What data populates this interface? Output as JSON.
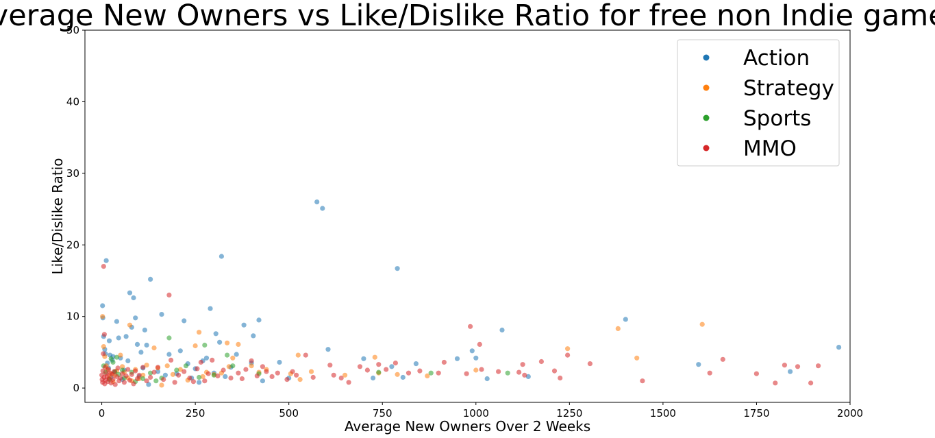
{
  "chart_data": {
    "type": "scatter",
    "title": "Average New Owners vs Like/Dislike Ratio for free non Indie games",
    "xlabel": "Average New Owners Over 2 Weeks",
    "ylabel": "Like/Dislike Ratio",
    "xlim": [
      -45,
      2000
    ],
    "ylim": [
      -2,
      50
    ],
    "xticks": [
      0,
      250,
      500,
      750,
      1000,
      1250,
      1500,
      1750,
      2000
    ],
    "yticks": [
      0,
      10,
      20,
      30,
      40,
      50
    ],
    "grid": false,
    "legend_position": "top-right",
    "series": [
      {
        "name": "Action",
        "color": "#1f77b4",
        "points": [
          [
            2,
            11.5
          ],
          [
            3,
            9.8
          ],
          [
            5,
            7.2
          ],
          [
            8,
            5.4
          ],
          [
            10,
            4.8
          ],
          [
            12,
            17.8
          ],
          [
            15,
            3.5
          ],
          [
            18,
            2.8
          ],
          [
            20,
            6.6
          ],
          [
            22,
            4.6
          ],
          [
            25,
            1.5
          ],
          [
            28,
            3.9
          ],
          [
            30,
            4.4
          ],
          [
            35,
            2.2
          ],
          [
            40,
            9.3
          ],
          [
            45,
            7.0
          ],
          [
            50,
            4.2
          ],
          [
            55,
            1.2
          ],
          [
            60,
            2.5
          ],
          [
            65,
            7.2
          ],
          [
            70,
            3.8
          ],
          [
            75,
            13.3
          ],
          [
            80,
            8.5
          ],
          [
            85,
            12.6
          ],
          [
            90,
            9.8
          ],
          [
            95,
            6.1
          ],
          [
            100,
            1.6
          ],
          [
            105,
            5.0
          ],
          [
            110,
            2.8
          ],
          [
            115,
            8.1
          ],
          [
            120,
            6.0
          ],
          [
            125,
            0.5
          ],
          [
            130,
            15.2
          ],
          [
            150,
            2.3
          ],
          [
            160,
            10.3
          ],
          [
            170,
            1.8
          ],
          [
            180,
            4.7
          ],
          [
            200,
            2.0
          ],
          [
            210,
            5.2
          ],
          [
            220,
            9.4
          ],
          [
            230,
            3.4
          ],
          [
            240,
            1.4
          ],
          [
            250,
            2.7
          ],
          [
            260,
            0.8
          ],
          [
            270,
            3.8
          ],
          [
            280,
            4.2
          ],
          [
            290,
            11.1
          ],
          [
            300,
            2.1
          ],
          [
            305,
            7.6
          ],
          [
            315,
            6.4
          ],
          [
            320,
            18.4
          ],
          [
            330,
            1.6
          ],
          [
            345,
            2.9
          ],
          [
            360,
            4.7
          ],
          [
            380,
            8.8
          ],
          [
            400,
            3.5
          ],
          [
            405,
            7.3
          ],
          [
            420,
            9.5
          ],
          [
            430,
            1.0
          ],
          [
            475,
            3.6
          ],
          [
            500,
            1.4
          ],
          [
            575,
            26.0
          ],
          [
            590,
            25.1
          ],
          [
            605,
            5.4
          ],
          [
            700,
            4.1
          ],
          [
            725,
            1.4
          ],
          [
            775,
            3.0
          ],
          [
            790,
            16.7
          ],
          [
            805,
            1.5
          ],
          [
            840,
            3.4
          ],
          [
            950,
            4.1
          ],
          [
            990,
            5.2
          ],
          [
            1000,
            4.2
          ],
          [
            1030,
            1.3
          ],
          [
            1070,
            8.1
          ],
          [
            1140,
            1.6
          ],
          [
            1400,
            9.6
          ],
          [
            1595,
            3.3
          ],
          [
            1840,
            2.3
          ],
          [
            1970,
            5.7
          ]
        ]
      },
      {
        "name": "Strategy",
        "color": "#ff7f0e",
        "points": [
          [
            2,
            10.0
          ],
          [
            5,
            5.8
          ],
          [
            8,
            4.4
          ],
          [
            12,
            3.1
          ],
          [
            15,
            2.6
          ],
          [
            20,
            1.5
          ],
          [
            25,
            2.0
          ],
          [
            30,
            0.9
          ],
          [
            35,
            1.8
          ],
          [
            40,
            2.4
          ],
          [
            50,
            4.6
          ],
          [
            55,
            3.0
          ],
          [
            60,
            2.2
          ],
          [
            70,
            1.4
          ],
          [
            75,
            8.8
          ],
          [
            80,
            1.0
          ],
          [
            90,
            2.6
          ],
          [
            100,
            1.3
          ],
          [
            110,
            1.8
          ],
          [
            120,
            3.2
          ],
          [
            140,
            5.6
          ],
          [
            150,
            2.8
          ],
          [
            160,
            0.4
          ],
          [
            175,
            3.1
          ],
          [
            190,
            1.9
          ],
          [
            210,
            2.6
          ],
          [
            230,
            1.1
          ],
          [
            250,
            5.9
          ],
          [
            260,
            7.8
          ],
          [
            270,
            1.6
          ],
          [
            280,
            2.2
          ],
          [
            300,
            1.9
          ],
          [
            320,
            2.1
          ],
          [
            335,
            6.3
          ],
          [
            340,
            3.0
          ],
          [
            350,
            4.2
          ],
          [
            365,
            6.1
          ],
          [
            400,
            3.1
          ],
          [
            420,
            2.2
          ],
          [
            440,
            2.6
          ],
          [
            505,
            2.0
          ],
          [
            525,
            4.6
          ],
          [
            530,
            1.2
          ],
          [
            560,
            2.3
          ],
          [
            650,
            1.8
          ],
          [
            730,
            4.3
          ],
          [
            740,
            2.1
          ],
          [
            790,
            1.9
          ],
          [
            870,
            1.7
          ],
          [
            1000,
            2.5
          ],
          [
            1245,
            5.5
          ],
          [
            1380,
            8.3
          ],
          [
            1430,
            4.2
          ],
          [
            1605,
            8.9
          ]
        ]
      },
      {
        "name": "Sports",
        "color": "#2ca02c",
        "points": [
          [
            5,
            3.1
          ],
          [
            10,
            2.2
          ],
          [
            20,
            1.2
          ],
          [
            25,
            4.1
          ],
          [
            30,
            3.6
          ],
          [
            35,
            2.3
          ],
          [
            40,
            4.3
          ],
          [
            45,
            1.9
          ],
          [
            55,
            2.5
          ],
          [
            60,
            1.4
          ],
          [
            80,
            2.2
          ],
          [
            90,
            0.9
          ],
          [
            110,
            1.3
          ],
          [
            130,
            2.1
          ],
          [
            145,
            1.0
          ],
          [
            160,
            1.4
          ],
          [
            180,
            7.0
          ],
          [
            200,
            2.5
          ],
          [
            225,
            3.1
          ],
          [
            260,
            1.5
          ],
          [
            275,
            6.0
          ],
          [
            300,
            1.8
          ],
          [
            335,
            4.6
          ],
          [
            350,
            3.1
          ],
          [
            420,
            2.0
          ],
          [
            740,
            2.2
          ],
          [
            880,
            2.1
          ],
          [
            1085,
            2.1
          ]
        ]
      },
      {
        "name": "MMO",
        "color": "#d62728",
        "points": [
          [
            0,
            1.8
          ],
          [
            1,
            1.2
          ],
          [
            2,
            0.8
          ],
          [
            3,
            2.4
          ],
          [
            4,
            4.8
          ],
          [
            5,
            17.0
          ],
          [
            6,
            1.5
          ],
          [
            7,
            7.5
          ],
          [
            8,
            0.6
          ],
          [
            9,
            2.9
          ],
          [
            10,
            1.1
          ],
          [
            12,
            2.0
          ],
          [
            14,
            1.6
          ],
          [
            16,
            0.9
          ],
          [
            18,
            2.6
          ],
          [
            20,
            1.3
          ],
          [
            22,
            2.1
          ],
          [
            25,
            0.7
          ],
          [
            28,
            1.9
          ],
          [
            30,
            1.2
          ],
          [
            33,
            2.3
          ],
          [
            36,
            0.5
          ],
          [
            40,
            1.6
          ],
          [
            43,
            2.8
          ],
          [
            46,
            1.0
          ],
          [
            50,
            1.4
          ],
          [
            55,
            2.0
          ],
          [
            60,
            0.8
          ],
          [
            65,
            1.7
          ],
          [
            70,
            2.6
          ],
          [
            75,
            1.1
          ],
          [
            80,
            1.9
          ],
          [
            85,
            0.6
          ],
          [
            90,
            2.4
          ],
          [
            95,
            1.3
          ],
          [
            100,
            1.8
          ],
          [
            110,
            2.9
          ],
          [
            120,
            1.0
          ],
          [
            130,
            1.5
          ],
          [
            140,
            2.2
          ],
          [
            150,
            2.9
          ],
          [
            165,
            1.2
          ],
          [
            180,
            13.0
          ],
          [
            185,
            3.9
          ],
          [
            195,
            0.8
          ],
          [
            205,
            1.8
          ],
          [
            220,
            2.3
          ],
          [
            235,
            1.4
          ],
          [
            245,
            0.9
          ],
          [
            255,
            2.7
          ],
          [
            265,
            3.6
          ],
          [
            275,
            1.0
          ],
          [
            285,
            2.0
          ],
          [
            295,
            3.9
          ],
          [
            310,
            1.7
          ],
          [
            325,
            2.5
          ],
          [
            345,
            1.4
          ],
          [
            365,
            2.1
          ],
          [
            375,
            1.3
          ],
          [
            385,
            2.6
          ],
          [
            400,
            3.8
          ],
          [
            415,
            1.7
          ],
          [
            430,
            3.0
          ],
          [
            440,
            2.3
          ],
          [
            455,
            1.6
          ],
          [
            470,
            2.1
          ],
          [
            495,
            1.2
          ],
          [
            510,
            2.3
          ],
          [
            520,
            1.8
          ],
          [
            545,
            4.6
          ],
          [
            565,
            1.5
          ],
          [
            610,
            3.2
          ],
          [
            620,
            1.8
          ],
          [
            640,
            1.4
          ],
          [
            660,
            0.8
          ],
          [
            690,
            3.0
          ],
          [
            710,
            2.5
          ],
          [
            740,
            3.3
          ],
          [
            760,
            2.6
          ],
          [
            785,
            3.5
          ],
          [
            820,
            2.1
          ],
          [
            850,
            2.4
          ],
          [
            900,
            2.1
          ],
          [
            915,
            3.6
          ],
          [
            975,
            2.0
          ],
          [
            985,
            8.6
          ],
          [
            1010,
            6.1
          ],
          [
            1015,
            2.6
          ],
          [
            1060,
            2.3
          ],
          [
            1115,
            2.2
          ],
          [
            1125,
            3.3
          ],
          [
            1130,
            1.8
          ],
          [
            1175,
            3.7
          ],
          [
            1210,
            2.4
          ],
          [
            1225,
            1.4
          ],
          [
            1245,
            4.6
          ],
          [
            1305,
            3.4
          ],
          [
            1445,
            1.0
          ],
          [
            1625,
            2.1
          ],
          [
            1660,
            4.0
          ],
          [
            1750,
            2.0
          ],
          [
            1800,
            0.7
          ],
          [
            1825,
            3.2
          ],
          [
            1860,
            3.0
          ],
          [
            1895,
            0.7
          ],
          [
            1915,
            3.1
          ]
        ]
      }
    ]
  }
}
